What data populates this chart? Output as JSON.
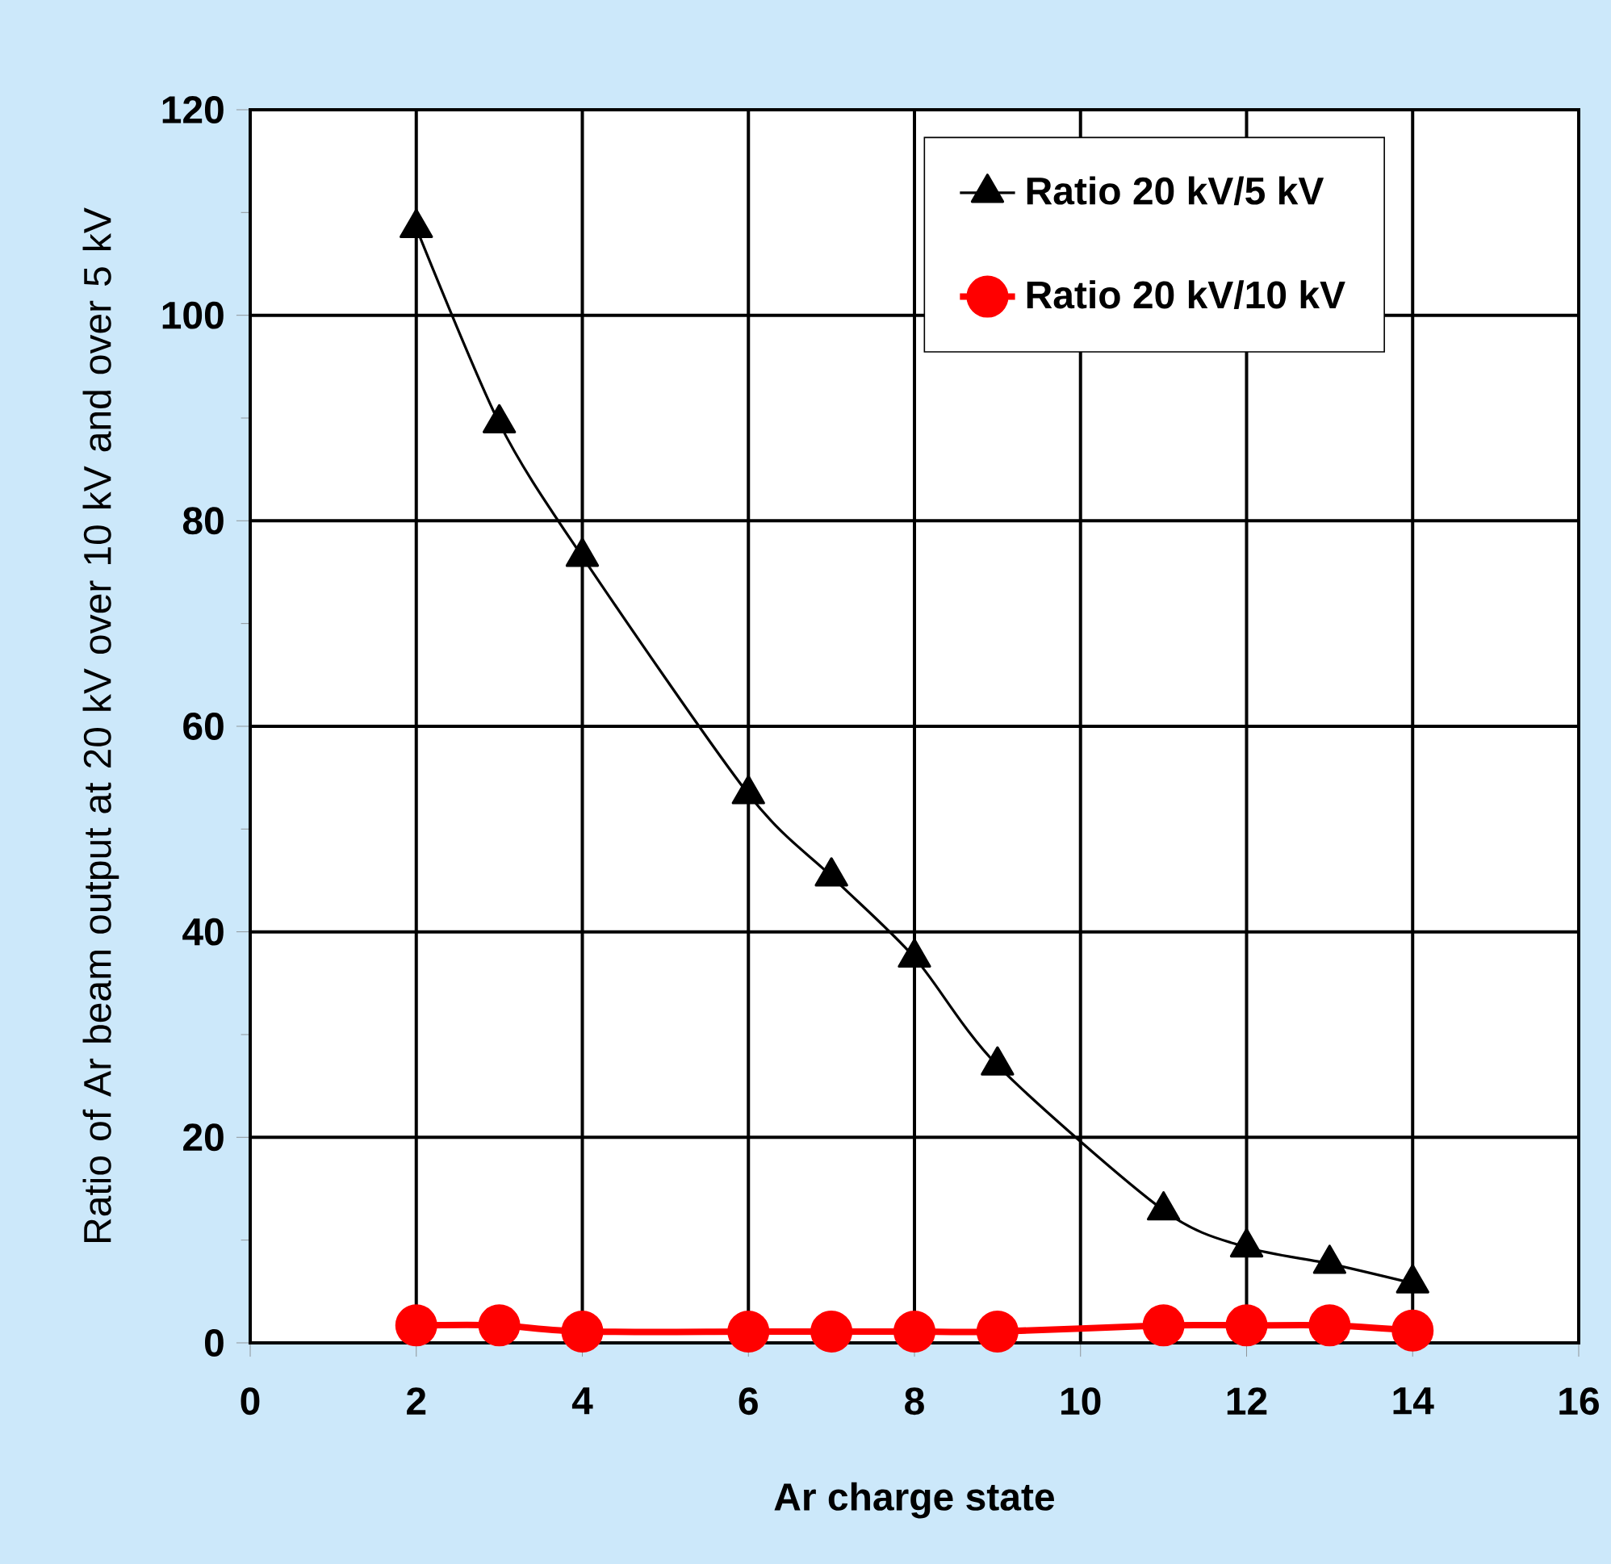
{
  "chart_data": {
    "type": "line",
    "xlabel": "Ar charge state",
    "ylabel": "Ratio of Ar beam output at 20 kV over 10 kV and over 5 kV",
    "x": [
      2,
      3,
      4,
      6,
      7,
      8,
      9,
      11,
      12,
      13,
      14
    ],
    "series": [
      {
        "name": "Ratio 20 kV/5 kV",
        "color": "#000000",
        "marker": "triangle",
        "values": [
          108.5,
          89.5,
          76.5,
          53.4,
          45.4,
          37.5,
          27,
          12.9,
          9.3,
          7.7,
          5.8
        ]
      },
      {
        "name": "Ratio 20 kV/10 kV",
        "color": "#ff0000",
        "marker": "circle",
        "values": [
          1.7,
          1.7,
          1.1,
          1.1,
          1.1,
          1.1,
          1.1,
          1.7,
          1.7,
          1.7,
          1.2
        ]
      }
    ],
    "xlim": [
      0,
      16
    ],
    "xticks": [
      0,
      2,
      4,
      6,
      8,
      10,
      12,
      14,
      16
    ],
    "ylim": [
      0,
      120
    ],
    "yticks": [
      0,
      20,
      40,
      60,
      80,
      100,
      120
    ],
    "grid": true,
    "legend": "top right",
    "line_style": "solid"
  }
}
